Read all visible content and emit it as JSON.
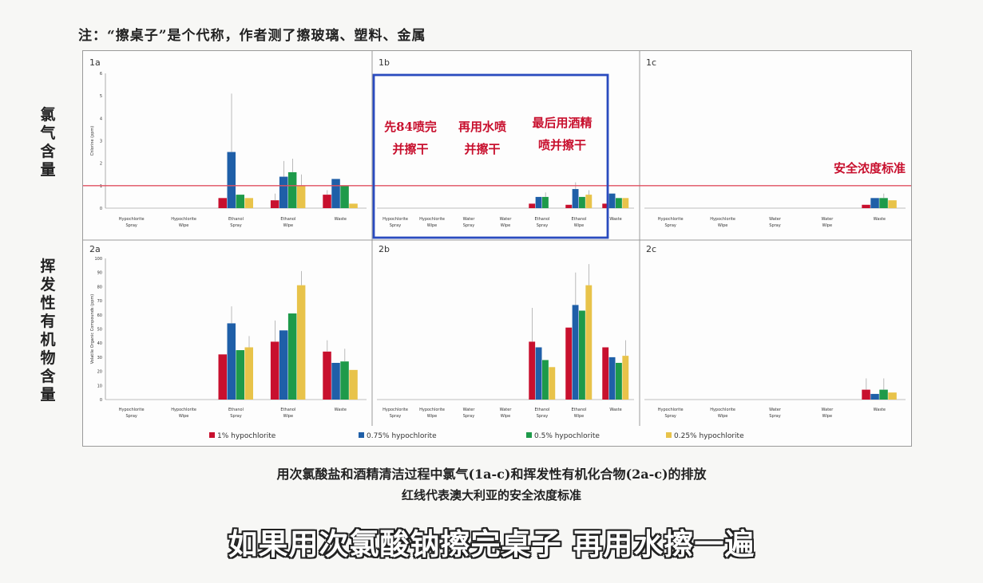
{
  "note": "注：“擦桌子”是个代称，作者测了擦玻璃、塑料、金属",
  "row_labels": [
    "氯气含量",
    "挥发性有机物含量"
  ],
  "caption_line1": "用次氯酸盐和酒精清洁过程中氯气(1a-c)和挥发性有机化合物(2a-c)的排放",
  "caption_line2": "红线代表澳大利亚的安全浓度标准",
  "subtitle": "如果用次氯酸钠擦完桌子 再用水擦一遍",
  "annotations": {
    "step1_line1": "先84喷完",
    "step1_line2": "并擦干",
    "step2_line1": "再用水喷",
    "step2_line2": "并擦干",
    "step3_line1": "最后用酒精",
    "step3_line2": "喷并擦干",
    "safety_label": "安全浓度标准"
  },
  "colors": {
    "s1": "#c8102e",
    "s2": "#1f5fa8",
    "s3": "#1e9a4a",
    "s4": "#e8c34a",
    "redline": "#e05060",
    "highlight": "#2a4bbf",
    "annotation": "#c8102e"
  },
  "chart_data": [
    {
      "panel": "1a",
      "type": "bar",
      "ylabel": "Chlorine (ppm)",
      "ylim": [
        0,
        6
      ],
      "yticks": [
        "0",
        "1",
        "2",
        "3",
        "4",
        "5",
        "6"
      ],
      "reference_line": 1,
      "categories": [
        "Hypochlorite Spray",
        "Hypochlorite Wipe",
        "Ethanol Spray",
        "Ethanol Wipe",
        "Waste"
      ],
      "series": [
        {
          "name": "1% hypochlorite",
          "values": [
            0,
            0,
            0.45,
            0.35,
            0.6
          ],
          "err": [
            0,
            0,
            0,
            0.3,
            0.2
          ]
        },
        {
          "name": "0.75% hypochlorite",
          "values": [
            0,
            0,
            2.5,
            1.4,
            1.3
          ],
          "err": [
            0,
            0,
            2.6,
            0.7,
            0
          ]
        },
        {
          "name": "0.5% hypochlorite",
          "values": [
            0,
            0,
            0.6,
            1.6,
            1.0
          ],
          "err": [
            0,
            0,
            0,
            0.6,
            0
          ]
        },
        {
          "name": "0.25% hypochlorite",
          "values": [
            0,
            0,
            0.45,
            1.0,
            0.2
          ],
          "err": [
            0,
            0,
            0,
            0.5,
            0
          ]
        }
      ]
    },
    {
      "panel": "1b",
      "type": "bar",
      "ylim": [
        0,
        6
      ],
      "reference_line": 1,
      "categories": [
        "Hypochlorite Spray",
        "Hypochlorite Wipe",
        "Water Spray",
        "Water Wipe",
        "Ethanol Spray",
        "Ethanol Wipe",
        "Waste"
      ],
      "series": [
        {
          "name": "1% hypochlorite",
          "values": [
            0,
            0,
            0,
            0,
            0.2,
            0.15,
            0.2
          ],
          "err": [
            0,
            0,
            0,
            0,
            0,
            0,
            0
          ]
        },
        {
          "name": "0.75% hypochlorite",
          "values": [
            0,
            0,
            0,
            0,
            0.5,
            0.85,
            0.65
          ],
          "err": [
            0,
            0,
            0,
            0,
            0,
            0.3,
            0
          ]
        },
        {
          "name": "0.5% hypochlorite",
          "values": [
            0,
            0,
            0,
            0,
            0.5,
            0.5,
            0.45
          ],
          "err": [
            0,
            0,
            0,
            0,
            0.2,
            0,
            0
          ]
        },
        {
          "name": "0.25% hypochlorite",
          "values": [
            0,
            0,
            0,
            0,
            0,
            0.6,
            0.45
          ],
          "err": [
            0,
            0,
            0,
            0,
            0,
            0.2,
            0
          ]
        }
      ]
    },
    {
      "panel": "1c",
      "type": "bar",
      "ylim": [
        0,
        6
      ],
      "reference_line": 1,
      "categories": [
        "Hypochlorite Spray",
        "Hypochlorite Wipe",
        "Water Spray",
        "Water Wipe",
        "Waste"
      ],
      "series": [
        {
          "name": "1% hypochlorite",
          "values": [
            0,
            0,
            0,
            0,
            0.15
          ],
          "err": [
            0,
            0,
            0,
            0,
            0
          ]
        },
        {
          "name": "0.75% hypochlorite",
          "values": [
            0,
            0,
            0,
            0,
            0.45
          ],
          "err": [
            0,
            0,
            0,
            0,
            0
          ]
        },
        {
          "name": "0.5% hypochlorite",
          "values": [
            0,
            0,
            0,
            0,
            0.45
          ],
          "err": [
            0,
            0,
            0,
            0,
            0.2
          ]
        },
        {
          "name": "0.25% hypochlorite",
          "values": [
            0,
            0,
            0,
            0,
            0.35
          ],
          "err": [
            0,
            0,
            0,
            0,
            0
          ]
        }
      ]
    },
    {
      "panel": "2a",
      "type": "bar",
      "ylabel": "Volatile Organic Compounds (ppm)",
      "ylim": [
        0,
        100
      ],
      "yticks": [
        "0",
        "10",
        "20",
        "30",
        "40",
        "50",
        "60",
        "70",
        "80",
        "90",
        "100"
      ],
      "categories": [
        "Hypochlorite Spray",
        "Hypochlorite Wipe",
        "Ethanol Spray",
        "Ethanol Wipe",
        "Waste"
      ],
      "series": [
        {
          "name": "1% hypochlorite",
          "values": [
            0,
            0,
            32,
            41,
            34
          ],
          "err": [
            0,
            0,
            0,
            15,
            8
          ]
        },
        {
          "name": "0.75% hypochlorite",
          "values": [
            0,
            0,
            54,
            49,
            26
          ],
          "err": [
            0,
            0,
            12,
            0,
            0
          ]
        },
        {
          "name": "0.5% hypochlorite",
          "values": [
            0,
            0,
            35,
            61,
            27
          ],
          "err": [
            0,
            0,
            0,
            0,
            9
          ]
        },
        {
          "name": "0.25% hypochlorite",
          "values": [
            0,
            0,
            37,
            81,
            21
          ],
          "err": [
            0,
            0,
            8,
            10,
            0
          ]
        }
      ]
    },
    {
      "panel": "2b",
      "type": "bar",
      "ylim": [
        0,
        100
      ],
      "categories": [
        "Hypochlorite Spray",
        "Hypochlorite Wipe",
        "Water Spray",
        "Water Wipe",
        "Ethanol Spray",
        "Ethanol Wipe",
        "Waste"
      ],
      "series": [
        {
          "name": "1% hypochlorite",
          "values": [
            0,
            0,
            0,
            0,
            41,
            51,
            37
          ],
          "err": [
            0,
            0,
            0,
            0,
            24,
            0,
            0
          ]
        },
        {
          "name": "0.75% hypochlorite",
          "values": [
            0,
            0,
            0,
            0,
            37,
            67,
            30
          ],
          "err": [
            0,
            0,
            0,
            0,
            0,
            23,
            0
          ]
        },
        {
          "name": "0.5% hypochlorite",
          "values": [
            0,
            0,
            0,
            0,
            28,
            63,
            26
          ],
          "err": [
            0,
            0,
            0,
            0,
            0,
            0,
            0
          ]
        },
        {
          "name": "0.25% hypochlorite",
          "values": [
            0,
            0,
            0,
            0,
            23,
            81,
            31
          ],
          "err": [
            0,
            0,
            0,
            0,
            0,
            15,
            11
          ]
        }
      ]
    },
    {
      "panel": "2c",
      "type": "bar",
      "ylim": [
        0,
        100
      ],
      "categories": [
        "Hypochlorite Spray",
        "Hypochlorite Wipe",
        "Water Spray",
        "Water Wipe",
        "Waste"
      ],
      "series": [
        {
          "name": "1% hypochlorite",
          "values": [
            0,
            0,
            0,
            0,
            7
          ],
          "err": [
            0,
            0,
            0,
            0,
            8
          ]
        },
        {
          "name": "0.75% hypochlorite",
          "values": [
            0,
            0,
            0,
            0,
            4
          ],
          "err": [
            0,
            0,
            0,
            0,
            0
          ]
        },
        {
          "name": "0.5% hypochlorite",
          "values": [
            0,
            0,
            0,
            0,
            7
          ],
          "err": [
            0,
            0,
            0,
            0,
            8
          ]
        },
        {
          "name": "0.25% hypochlorite",
          "values": [
            0,
            0,
            0,
            0,
            5
          ],
          "err": [
            0,
            0,
            0,
            0,
            0
          ]
        }
      ]
    }
  ],
  "legend": [
    "1% hypochlorite",
    "0.75% hypochlorite",
    "0.5% hypochlorite",
    "0.25% hypochlorite"
  ]
}
